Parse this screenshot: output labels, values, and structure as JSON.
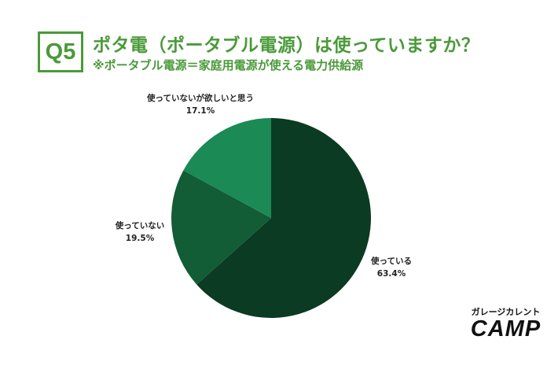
{
  "header": {
    "badge": "Q5",
    "title": "ポタ電（ポータブル電源）は使っていますか？",
    "subtitle": "※ポータブル電源＝家庭用電源が使える電力供給源"
  },
  "colors": {
    "accent": "#4a9a3a",
    "slice_1": "#0b3b22",
    "slice_2": "#125c36",
    "slice_3": "#1b8a55"
  },
  "chart_data": {
    "type": "pie",
    "slices": [
      {
        "label": "使っている",
        "value": 63.4,
        "value_label": "63.4%"
      },
      {
        "label": "使っていない",
        "value": 19.5,
        "value_label": "19.5%"
      },
      {
        "label": "使っていないが欲しいと思う",
        "value": 17.1,
        "value_label": "17.1%"
      }
    ],
    "start": "12 o'clock",
    "direction": "clockwise"
  },
  "logo": {
    "top_text": "ガレージカレント",
    "main_text": "CAMP"
  }
}
